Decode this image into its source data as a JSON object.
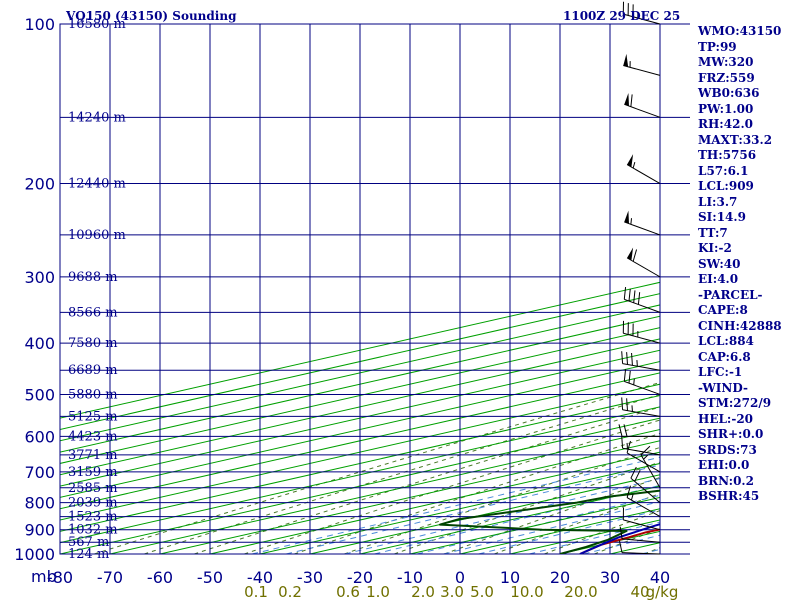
{
  "chart_data": {
    "type": "line",
    "title": "VQ150 (43150) Sounding",
    "valid_time": "1100Z 29 DEC 25",
    "ylabel": "mb",
    "pressure_ticks": [
      100,
      200,
      300,
      400,
      500,
      600,
      700,
      800,
      900,
      1000
    ],
    "temperature_ticks": [
      -80,
      -70,
      -60,
      -50,
      -40,
      -30,
      -20,
      -10,
      0,
      10,
      20,
      30,
      40
    ],
    "xlim": [
      -80,
      40
    ],
    "ylim": [
      1000,
      100
    ],
    "height_labels": [
      {
        "p": 100,
        "label": "16580 m"
      },
      {
        "p": 150,
        "label": "14240 m"
      },
      {
        "p": 200,
        "label": "12440 m"
      },
      {
        "p": 250,
        "label": "10960 m"
      },
      {
        "p": 300,
        "label": "9688 m"
      },
      {
        "p": 350,
        "label": "8566 m"
      },
      {
        "p": 400,
        "label": "7580 m"
      },
      {
        "p": 450,
        "label": "6689 m"
      },
      {
        "p": 500,
        "label": "5880 m"
      },
      {
        "p": 550,
        "label": "5125 m"
      },
      {
        "p": 600,
        "label": "4423 m"
      },
      {
        "p": 650,
        "label": "3771 m"
      },
      {
        "p": 700,
        "label": "3159 m"
      },
      {
        "p": 750,
        "label": "2585 m"
      },
      {
        "p": 800,
        "label": "2039 m"
      },
      {
        "p": 850,
        "label": "1523 m"
      },
      {
        "p": 900,
        "label": "1032 m"
      },
      {
        "p": 950,
        "label": "567 m"
      },
      {
        "p": 1000,
        "label": "124 m"
      }
    ],
    "mixing_ratio_labels": [
      "0.1",
      "0.2",
      "0.6",
      "1.0",
      "2.0",
      "3.0",
      "5.0",
      "10.0",
      "20.0",
      "40",
      "g/kg"
    ],
    "series": [
      {
        "name": "Temperature",
        "color": "#b00000",
        "points": [
          [
            1000,
            24
          ],
          [
            990,
            23
          ],
          [
            960,
            20
          ],
          [
            930,
            19
          ],
          [
            910,
            18
          ],
          [
            880,
            19
          ],
          [
            850,
            18
          ],
          [
            800,
            13
          ],
          [
            770,
            11
          ],
          [
            740,
            8
          ],
          [
            710,
            5
          ],
          [
            680,
            3
          ],
          [
            650,
            1
          ],
          [
            620,
            -1
          ],
          [
            580,
            -3
          ],
          [
            550,
            -6
          ],
          [
            500,
            -14
          ],
          [
            460,
            -20
          ],
          [
            440,
            -22
          ],
          [
            430,
            -24
          ],
          [
            420,
            -25
          ],
          [
            400,
            -30
          ],
          [
            370,
            -34
          ],
          [
            350,
            -37
          ],
          [
            330,
            -40
          ],
          [
            300,
            -43
          ],
          [
            270,
            -49
          ],
          [
            250,
            -53
          ],
          [
            200,
            -63
          ],
          [
            150,
            -73
          ],
          [
            130,
            -79
          ],
          [
            120,
            -80
          ],
          [
            110,
            -82
          ],
          [
            100,
            -84
          ]
        ]
      },
      {
        "name": "Dewpoint",
        "color": "#004400",
        "points": [
          [
            1000,
            20
          ],
          [
            970,
            19
          ],
          [
            940,
            17
          ],
          [
            905,
            13
          ],
          [
            900,
            -5
          ],
          [
            880,
            -30
          ],
          [
            860,
            -31
          ],
          [
            800,
            -22
          ],
          [
            780,
            -21
          ],
          [
            760,
            -16
          ],
          [
            740,
            -13
          ],
          [
            720,
            -9
          ],
          [
            700,
            -1
          ],
          [
            680,
            -3
          ],
          [
            660,
            -2
          ],
          [
            640,
            -12
          ],
          [
            620,
            -14
          ],
          [
            600,
            -17
          ],
          [
            550,
            -29
          ],
          [
            500,
            -24
          ],
          [
            480,
            -27
          ],
          [
            450,
            -32
          ],
          [
            430,
            -35
          ],
          [
            420,
            -38
          ],
          [
            400,
            -41
          ],
          [
            380,
            -47
          ],
          [
            360,
            -50
          ],
          [
            350,
            -55
          ],
          [
            300,
            -58
          ],
          [
            250,
            -65
          ],
          [
            210,
            -71
          ],
          [
            200,
            -71
          ],
          [
            150,
            -84
          ],
          [
            140,
            -87
          ]
        ]
      },
      {
        "name": "Parcel",
        "color": "#0000aa",
        "points": [
          [
            1000,
            24
          ],
          [
            980,
            22
          ],
          [
            960,
            20
          ],
          [
            930,
            17
          ],
          [
            884,
            14
          ],
          [
            850,
            12
          ],
          [
            800,
            8
          ],
          [
            750,
            5
          ],
          [
            700,
            1
          ],
          [
            650,
            -3
          ],
          [
            600,
            -8
          ],
          [
            550,
            -13
          ],
          [
            500,
            -19
          ],
          [
            450,
            -25
          ],
          [
            400,
            -32
          ],
          [
            350,
            -40
          ],
          [
            300,
            -49
          ],
          [
            250,
            -59
          ],
          [
            200,
            -70
          ],
          [
            150,
            -84
          ],
          [
            140,
            -88
          ]
        ]
      }
    ],
    "wind_barbs": [
      {
        "p": 1000,
        "dir": 272,
        "spd": 9
      },
      {
        "p": 950,
        "dir": 275,
        "spd": 10
      },
      {
        "p": 900,
        "dir": 285,
        "spd": 10
      },
      {
        "p": 850,
        "dir": 300,
        "spd": 15
      },
      {
        "p": 800,
        "dir": 310,
        "spd": 20
      },
      {
        "p": 750,
        "dir": 330,
        "spd": 15
      },
      {
        "p": 700,
        "dir": 300,
        "spd": 10
      },
      {
        "p": 650,
        "dir": 280,
        "spd": 15
      },
      {
        "p": 600,
        "dir": 270,
        "spd": 20
      },
      {
        "p": 550,
        "dir": 280,
        "spd": 25
      },
      {
        "p": 500,
        "dir": 290,
        "spd": 25
      },
      {
        "p": 450,
        "dir": 280,
        "spd": 35
      },
      {
        "p": 400,
        "dir": 285,
        "spd": 35
      },
      {
        "p": 350,
        "dir": 290,
        "spd": 40
      },
      {
        "p": 300,
        "dir": 300,
        "spd": 60
      },
      {
        "p": 250,
        "dir": 290,
        "spd": 55
      },
      {
        "p": 200,
        "dir": 300,
        "spd": 55
      },
      {
        "p": 150,
        "dir": 290,
        "spd": 60
      },
      {
        "p": 125,
        "dir": 285,
        "spd": 55
      },
      {
        "p": 100,
        "dir": 285,
        "spd": 35
      }
    ]
  },
  "indices": [
    "WMO:43150",
    "TP:99",
    "MW:320",
    "FRZ:559",
    "WB0:636",
    "PW:1.00",
    "RH:42.0",
    "MAXT:33.2",
    "TH:5756",
    "L57:6.1",
    "LCL:909",
    "LI:3.7",
    "SI:14.9",
    "TT:7",
    "KI:-2",
    "SW:40",
    "EI:4.0",
    "-PARCEL-",
    "CAPE:8",
    "CINH:42888",
    "LCL:884",
    "CAP:6.8",
    "LFC:-1",
    "-WIND-",
    "STM:272/9",
    "HEL:-20",
    "SHR+:0.0",
    "SRDS:73",
    "EHI:0.0",
    "BRN:0.2",
    "BSHR:45"
  ],
  "colors": {
    "grid": "#000080",
    "isotherm": "#00a000",
    "dry_adiabat": "#4a7a28",
    "mixing_ratio": "#4a8ad8",
    "label": "#00008b",
    "mixing_label": "#707000"
  }
}
